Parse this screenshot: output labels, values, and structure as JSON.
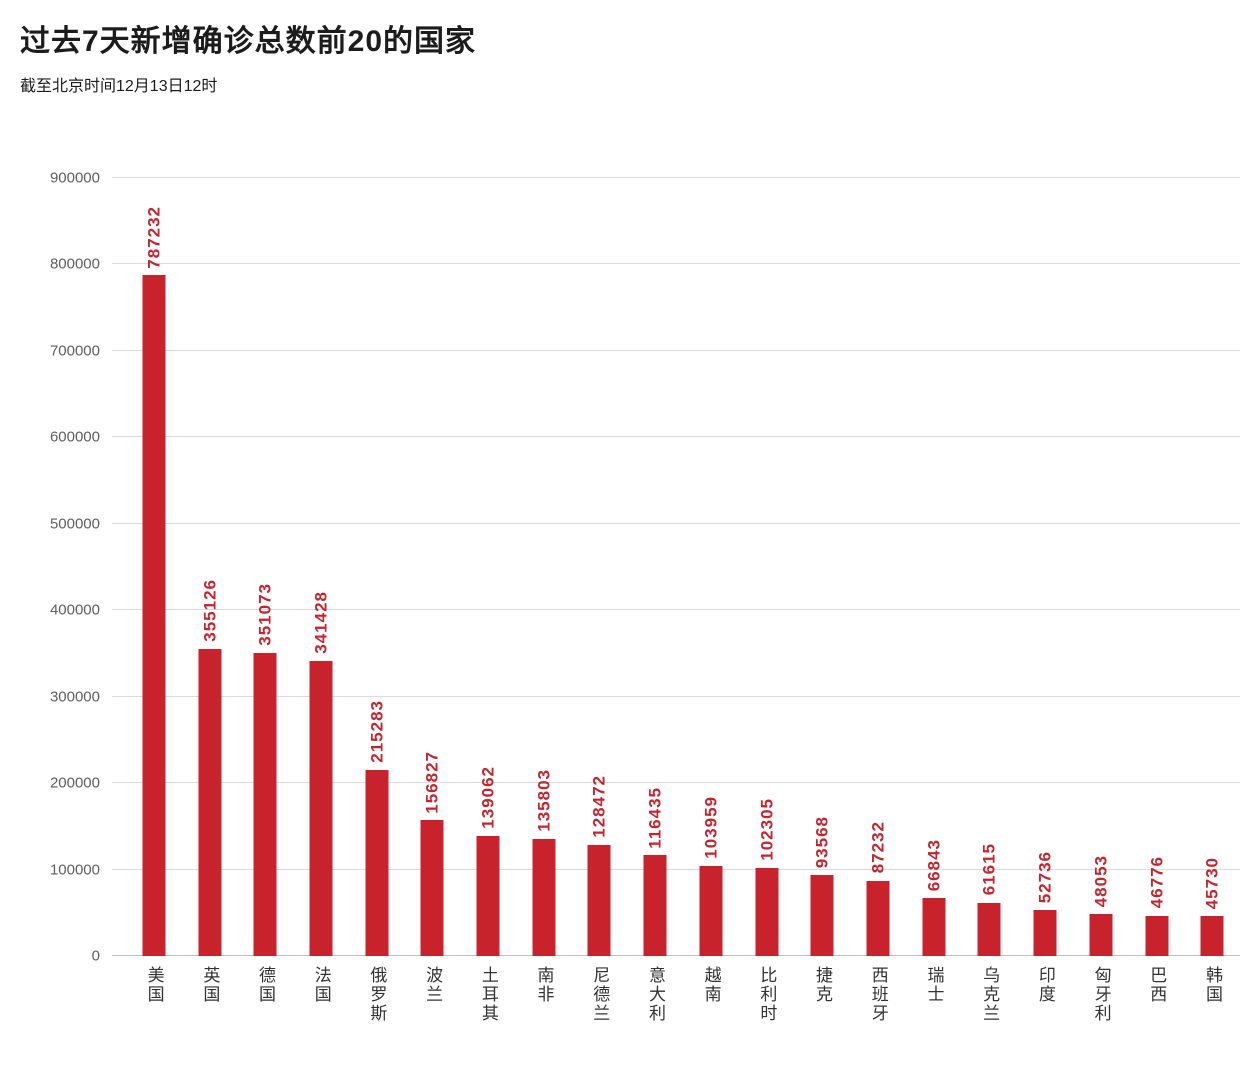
{
  "header": {
    "title": "过去7天新增确诊总数前20的国家",
    "subtitle": "截至北京时间12月13日12时"
  },
  "chart_data": {
    "type": "bar",
    "title": "过去7天新增确诊总数前20的国家",
    "subtitle": "截至北京时间12月13日12时",
    "categories": [
      "美国",
      "英国",
      "德国",
      "法国",
      "俄罗斯",
      "波兰",
      "土耳其",
      "南非",
      "尼德兰",
      "意大利",
      "越南",
      "比利时",
      "捷克",
      "西班牙",
      "瑞士",
      "乌克兰",
      "印度",
      "匈牙利",
      "巴西",
      "韩国"
    ],
    "values": [
      787232,
      355126,
      351073,
      341428,
      215283,
      156827,
      139062,
      135803,
      128472,
      116435,
      103959,
      102305,
      93568,
      87232,
      66843,
      61615,
      52736,
      48053,
      46776,
      45730
    ],
    "xlabel": "",
    "ylabel": "",
    "ylim": [
      0,
      900000
    ],
    "yticks": [
      0,
      100000,
      200000,
      300000,
      400000,
      500000,
      600000,
      700000,
      800000,
      900000
    ],
    "grid": true,
    "legend": "none",
    "bar_color": "#c8232c",
    "value_label_color": "#c8232c"
  }
}
